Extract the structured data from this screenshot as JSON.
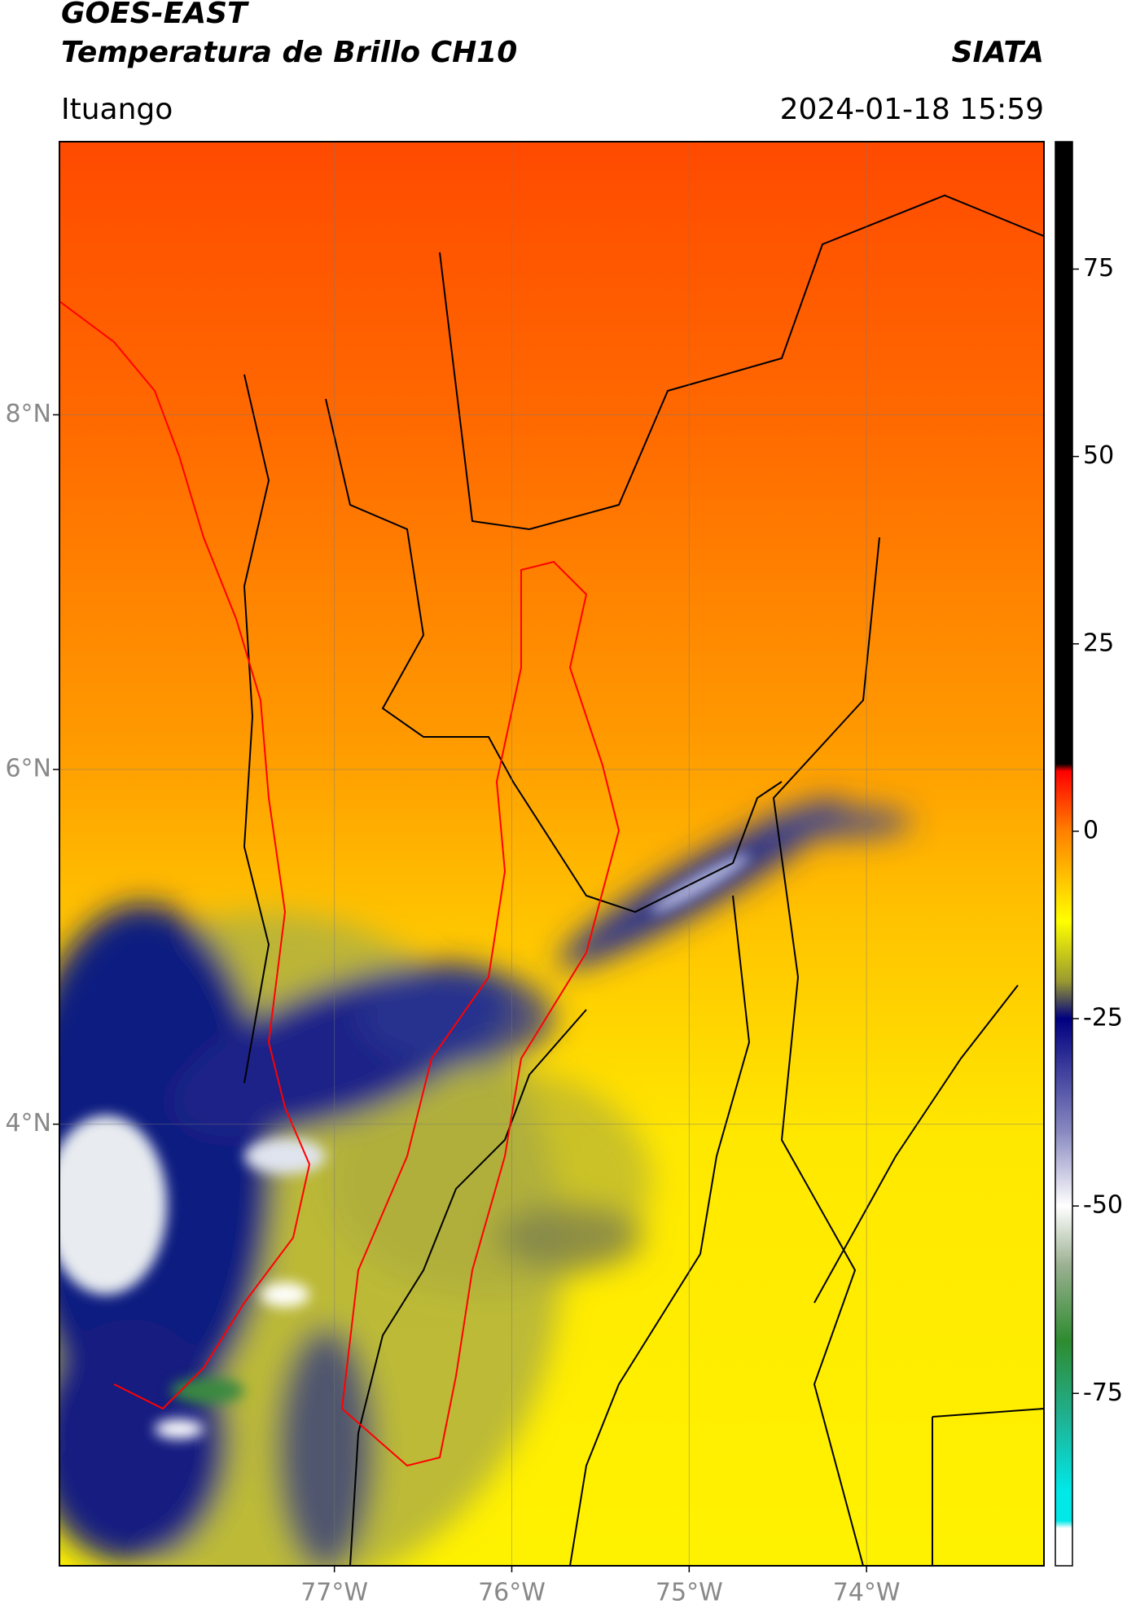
{
  "header": {
    "title": "GOES-EAST",
    "subtitle": "Temperatura de Brillo CH10",
    "source": "SIATA",
    "region": "Ituango",
    "datetime": "2024-01-18 15:59"
  },
  "map": {
    "xlim": [
      -78.55,
      -73.0
    ],
    "ylim": [
      1.51,
      9.54
    ],
    "xticks": [
      {
        "value": -77,
        "label": "77°W"
      },
      {
        "value": -76,
        "label": "76°W"
      },
      {
        "value": -75,
        "label": "75°W"
      },
      {
        "value": -74,
        "label": "74°W"
      }
    ],
    "yticks": [
      {
        "value": 8,
        "label": "8°N"
      },
      {
        "value": 6,
        "label": "6°N"
      },
      {
        "value": 4,
        "label": "4°N"
      }
    ],
    "grid": true
  },
  "colorbar": {
    "lim": [
      -98,
      92
    ],
    "ticks": [
      75,
      50,
      25,
      0,
      -25,
      -50,
      -75
    ],
    "stops": [
      {
        "value": 92,
        "color": "#000000"
      },
      {
        "value": 9,
        "color": "#000000"
      },
      {
        "value": 8,
        "color": "#ff0000"
      },
      {
        "value": 0,
        "color": "#ff8000"
      },
      {
        "value": -12,
        "color": "#ffff00"
      },
      {
        "value": -20,
        "color": "#9a9a30"
      },
      {
        "value": -25,
        "color": "#000080"
      },
      {
        "value": -40,
        "color": "#8888c0"
      },
      {
        "value": -50,
        "color": "#ffffff"
      },
      {
        "value": -58,
        "color": "#9ab090"
      },
      {
        "value": -68,
        "color": "#2e8b30"
      },
      {
        "value": -78,
        "color": "#20b090"
      },
      {
        "value": -88,
        "color": "#00e8e8"
      },
      {
        "value": -92,
        "color": "#00e8e8"
      },
      {
        "value": -93,
        "color": "#ffffff"
      },
      {
        "value": -98,
        "color": "#ffffff"
      }
    ]
  }
}
